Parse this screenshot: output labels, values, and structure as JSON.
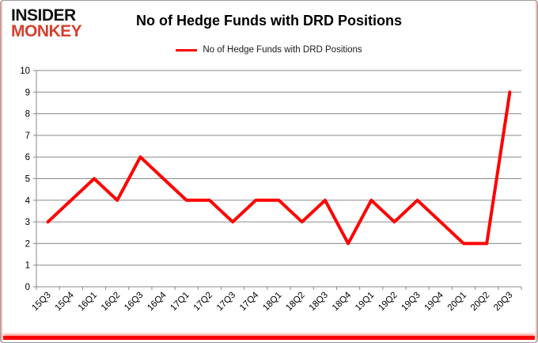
{
  "branding": {
    "line1": "INSIDER",
    "line2": "MONKEY",
    "color_line1": "#111111",
    "color_line2": "#d5402e"
  },
  "header": {
    "title": "No of Hedge Funds with DRD Positions"
  },
  "legend": {
    "label": "No of Hedge Funds with DRD Positions",
    "line_color": "#ff0000"
  },
  "chart_data": {
    "type": "line",
    "title": "No of Hedge Funds with DRD Positions",
    "categories": [
      "15Q3",
      "15Q4",
      "16Q1",
      "16Q2",
      "16Q3",
      "16Q4",
      "17Q1",
      "17Q2",
      "17Q3",
      "17Q4",
      "18Q1",
      "18Q2",
      "18Q3",
      "18Q4",
      "19Q1",
      "19Q2",
      "19Q3",
      "19Q4",
      "20Q1",
      "20Q2",
      "20Q3"
    ],
    "series": [
      {
        "name": "No of Hedge Funds with DRD Positions",
        "color": "#ff0000",
        "values": [
          3,
          4,
          5,
          4,
          6,
          5,
          4,
          4,
          3,
          4,
          4,
          3,
          4,
          2,
          4,
          3,
          4,
          3,
          2,
          2,
          9
        ]
      }
    ],
    "xlabel": "",
    "ylabel": "",
    "ylim": [
      0,
      10
    ],
    "ytick_step": 1,
    "grid": true,
    "grid_color": "#8a8a8a",
    "axis_color": "#8a8a8a",
    "tick_label_color": "#000000",
    "legend_position": "top-center"
  }
}
